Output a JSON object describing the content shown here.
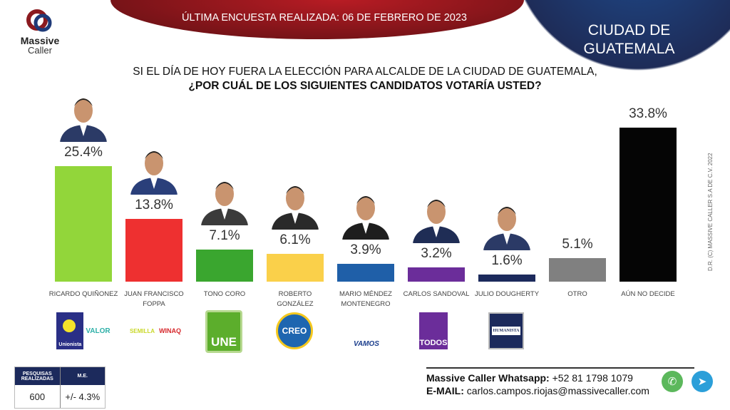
{
  "header": {
    "date_label": "ÚLTIMA ENCUESTA REALIZADA: 06 DE FEBRERO DE 2023",
    "city": "CIUDAD DE GUATEMALA"
  },
  "logo": {
    "line1": "Massive",
    "line2": "Caller"
  },
  "question": {
    "line1": "SI EL DÍA DE HOY FUERA LA ELECCIÓN PARA ALCALDE DE LA CIUDAD DE GUATEMALA,",
    "line2": "¿POR CUÁL DE LOS SIGUIENTES CANDIDATOS VOTARÍA USTED?"
  },
  "copyright": "D.R. (C) MASSIVE CALLER S.A DE C.V. 2022",
  "chart_data": {
    "type": "bar",
    "title": "¿POR CUÁL DE LOS SIGUIENTES CANDIDATOS VOTARÍA USTED?",
    "categories": [
      "RICARDO QUIÑONEZ",
      "JUAN FRANCISCO FOPPA",
      "TONO CORO",
      "ROBERTO GONZÁLEZ",
      "MARIO MÉNDEZ MONTENEGRO",
      "CARLOS SANDOVAL",
      "JULIO DOUGHERTY",
      "OTRO",
      "AÚN NO DECIDE"
    ],
    "values": [
      25.4,
      13.8,
      7.1,
      6.1,
      3.9,
      3.2,
      1.6,
      5.1,
      33.8
    ],
    "labels": [
      "25.4%",
      "13.8%",
      "7.1%",
      "6.1%",
      "3.9%",
      "3.2%",
      "1.6%",
      "5.1%",
      "33.8%"
    ],
    "colors": [
      "#92d63a",
      "#ee3030",
      "#3aa62f",
      "#fad04a",
      "#1f5fa8",
      "#6b2d9a",
      "#1c2a5c",
      "#808080",
      "#050505"
    ],
    "ylim": [
      0,
      35
    ],
    "xlabel": "",
    "ylabel": "",
    "grid": false
  },
  "parties": [
    "Unionista",
    "VALOR",
    "SEMILLA",
    "WINAQ",
    "UNE",
    "CREO",
    "VAMOS",
    "TODOS",
    "HUMANISTA"
  ],
  "stats": {
    "h1": "PESQUISAS REALIZADAS",
    "h2": "M.E.",
    "v1": "600",
    "v2": "+/- 4.3%"
  },
  "contact": {
    "wa_label": "Massive Caller Whatsapp:",
    "wa": " +52 81 1798 1079",
    "mail_label": "E-MAIL:",
    "mail": " carlos.campos.riojas@massivecaller.com"
  }
}
